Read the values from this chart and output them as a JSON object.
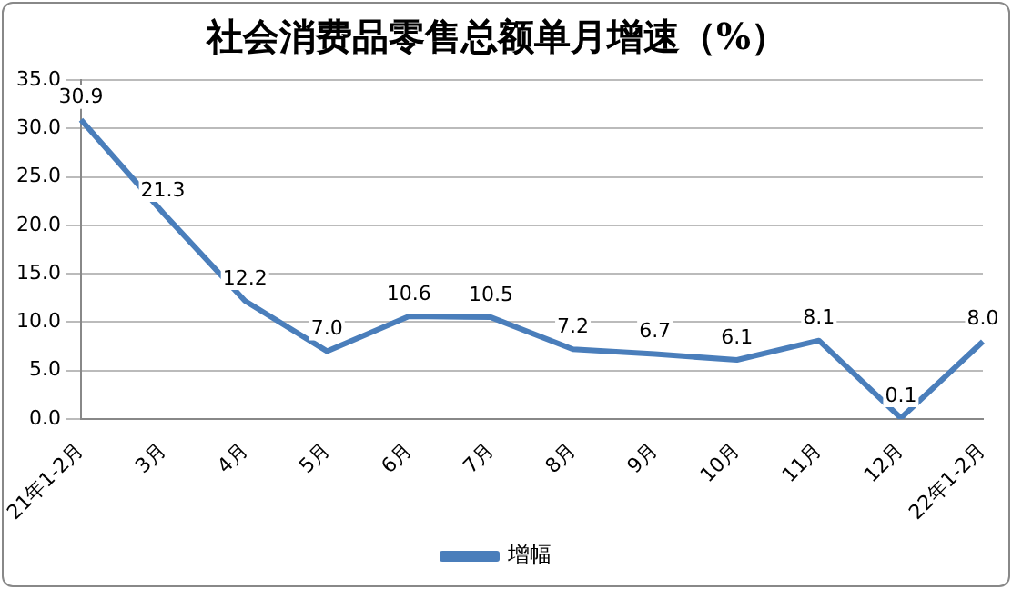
{
  "chart_data": {
    "type": "line",
    "title": "社会消费品零售总额单月增速（%）",
    "categories": [
      "21年1-2月",
      "3月",
      "4月",
      "5月",
      "6月",
      "7月",
      "8月",
      "9月",
      "10月",
      "11月",
      "12月",
      "22年1-2月"
    ],
    "series": [
      {
        "name": "增幅",
        "color": "#4a7ebb",
        "values": [
          30.9,
          21.3,
          12.2,
          7.0,
          10.6,
          10.5,
          7.2,
          6.7,
          6.1,
          8.1,
          0.1,
          8.0
        ],
        "value_labels": [
          "30.9",
          "21.3",
          "12.2",
          "7.0",
          "10.6",
          "10.5",
          "7.2",
          "6.7",
          "6.1",
          "8.1",
          "0.1",
          "8.0"
        ]
      }
    ],
    "ylim": [
      0,
      35
    ],
    "yticks": [
      {
        "value": 0,
        "label": "0.0"
      },
      {
        "value": 5,
        "label": "5.0"
      },
      {
        "value": 10,
        "label": "10.0"
      },
      {
        "value": 15,
        "label": "15.0"
      },
      {
        "value": 20,
        "label": "20.0"
      },
      {
        "value": 25,
        "label": "25.0"
      },
      {
        "value": 30,
        "label": "30.0"
      },
      {
        "value": 35,
        "label": "35.0"
      }
    ],
    "grid": "y",
    "legend": "bottom",
    "marker": "none",
    "line_style": "solid"
  }
}
